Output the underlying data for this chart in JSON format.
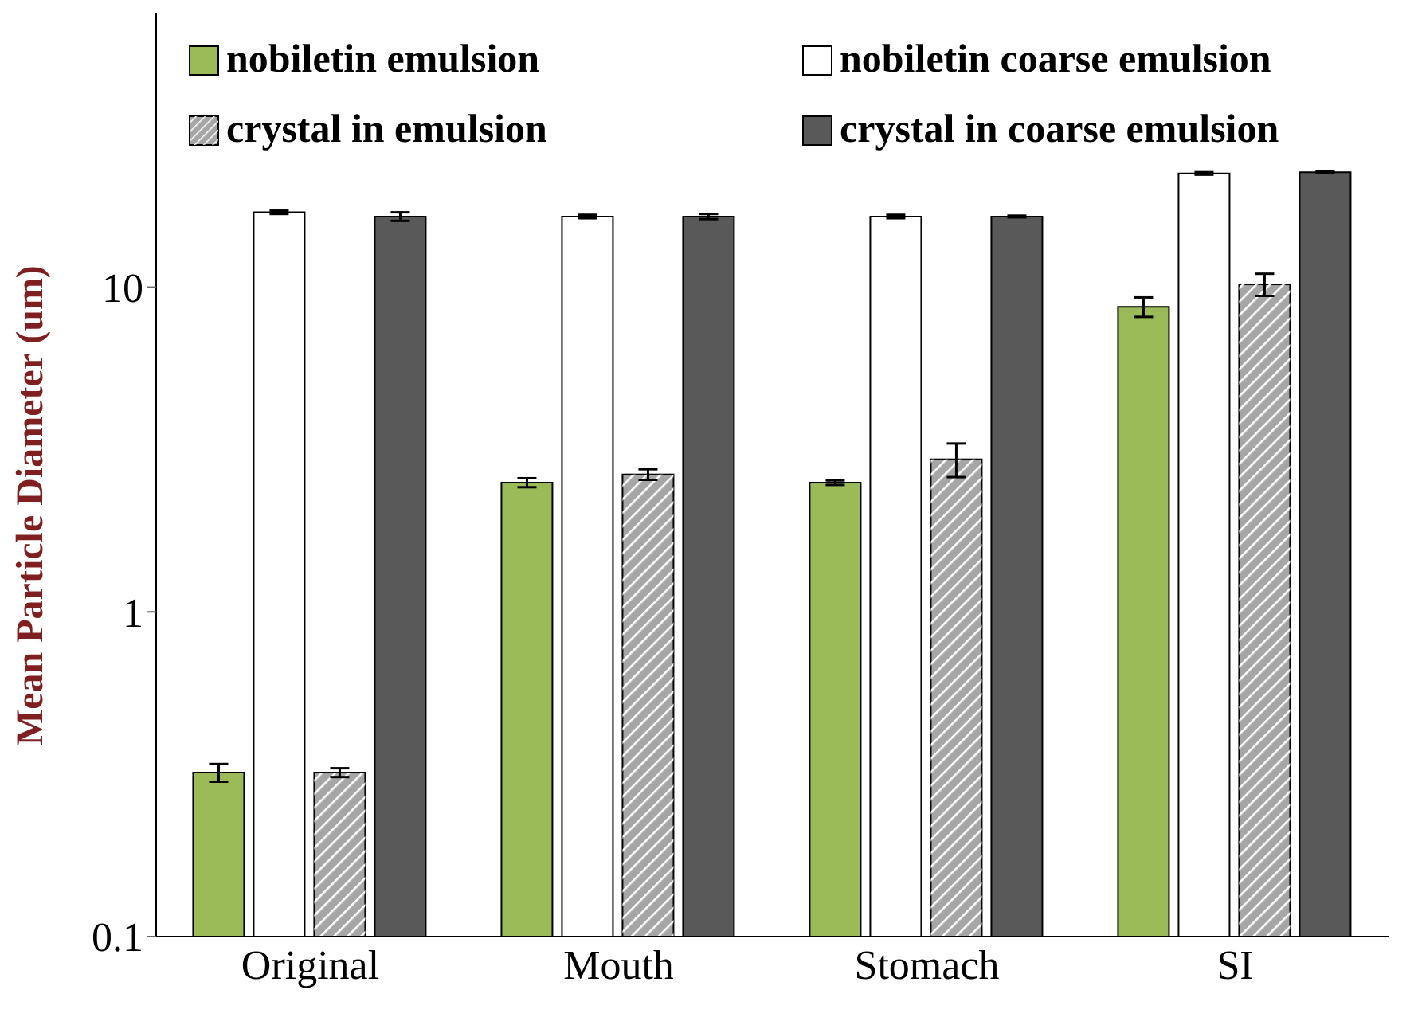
{
  "chart_data": {
    "type": "bar",
    "ylabel": "Mean Particle Diameter (um)",
    "categories": [
      "Original",
      "Mouth",
      "Stomach",
      "SI"
    ],
    "series": [
      {
        "name": "nobiletin emulsion",
        "color": "#9bbb59",
        "values": [
          0.32,
          2.5,
          2.5,
          8.7
        ],
        "errors": [
          0.02,
          0.08,
          0.04,
          0.6
        ]
      },
      {
        "name": "nobiletin coarse emulsion",
        "color": "#ffffff",
        "values": [
          17,
          16.5,
          16.5,
          22.4
        ],
        "errors": [
          0.2,
          0.2,
          0.2,
          0.2
        ]
      },
      {
        "name": "crystal in emulsion",
        "color": "#a6a6a6",
        "values": [
          0.32,
          2.65,
          2.95,
          10.2
        ],
        "errors": [
          0.01,
          0.1,
          0.35,
          0.8
        ]
      },
      {
        "name": "crystal in coarse emulsion",
        "color": "#595959",
        "values": [
          16.5,
          16.5,
          16.5,
          22.6
        ],
        "errors": [
          0.5,
          0.3,
          0.1,
          0.1
        ]
      }
    ],
    "log": "y",
    "ylim": [
      0.1,
      70
    ],
    "yticks": [
      0.1,
      1,
      10
    ],
    "grid": false,
    "legend": "top"
  }
}
